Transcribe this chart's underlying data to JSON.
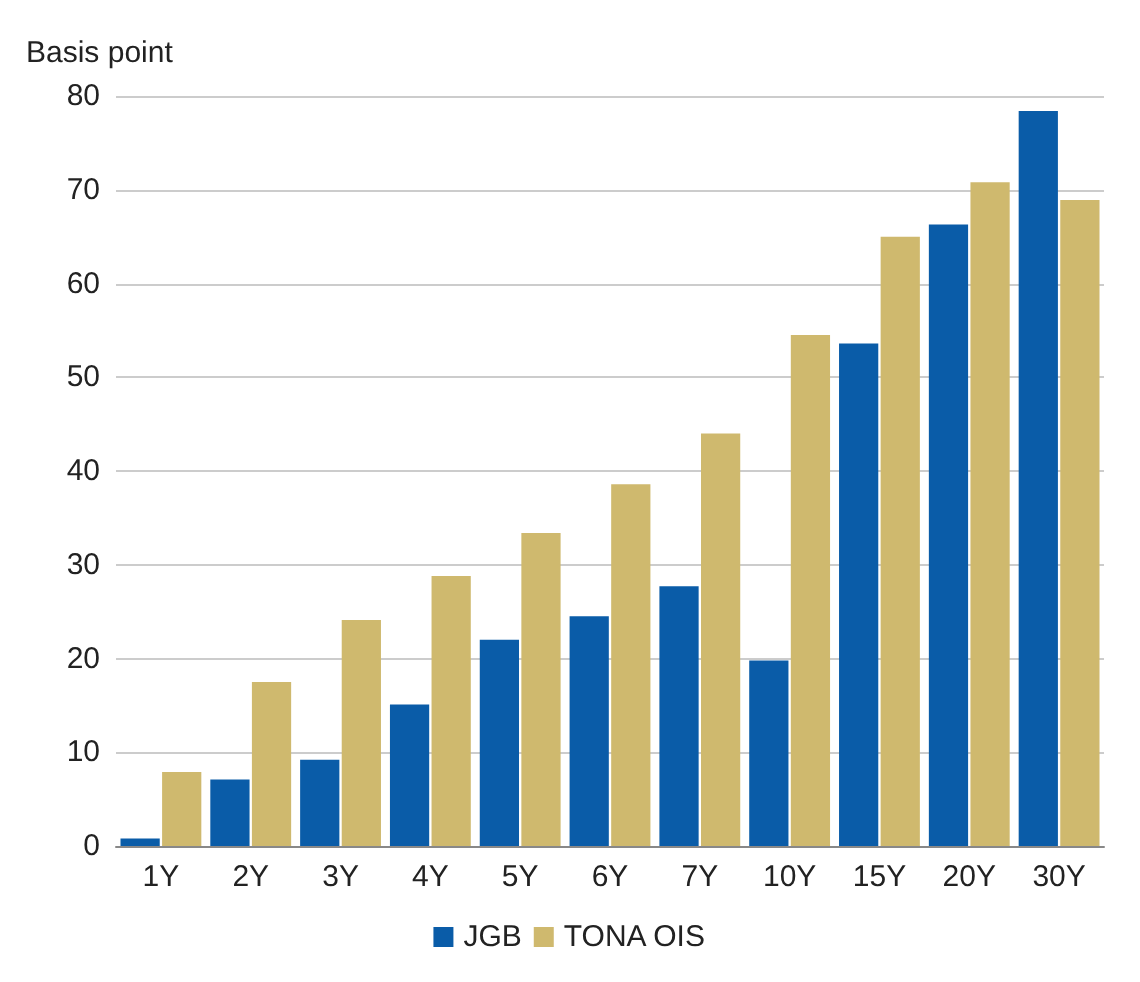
{
  "chart_data": {
    "type": "bar",
    "ylabel": "Basis point",
    "categories": [
      "1Y",
      "2Y",
      "3Y",
      "4Y",
      "5Y",
      "6Y",
      "7Y",
      "10Y",
      "15Y",
      "20Y",
      "30Y"
    ],
    "series": [
      {
        "name": "JGB",
        "color": "#0a5ca8",
        "values": [
          0.8,
          7.1,
          9.2,
          15.1,
          22.0,
          24.5,
          27.7,
          19.8,
          53.6,
          66.3,
          78.4
        ]
      },
      {
        "name": "TONA OIS",
        "color": "#cfb96e",
        "values": [
          7.9,
          17.5,
          24.1,
          28.8,
          33.4,
          38.6,
          44.0,
          54.5,
          65.0,
          70.8,
          68.9
        ]
      }
    ],
    "ylim": [
      0,
      80
    ],
    "yticks": [
      0,
      10,
      20,
      30,
      40,
      50,
      60,
      70,
      80
    ],
    "grid": "y",
    "legend": "bottom"
  }
}
